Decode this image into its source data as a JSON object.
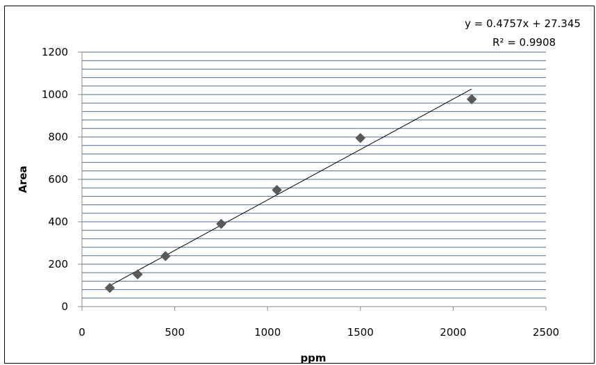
{
  "chart_data": {
    "type": "scatter",
    "title": "",
    "xlabel": "ppm",
    "ylabel": "Area",
    "xlim": [
      0,
      2500
    ],
    "ylim": [
      0,
      1200
    ],
    "x_ticks": [
      0,
      500,
      1000,
      1500,
      2000,
      2500
    ],
    "y_ticks": [
      0,
      200,
      400,
      600,
      800,
      1000,
      1200
    ],
    "y_gridline_step": 40,
    "grid": true,
    "marker": "diamond",
    "colors": {
      "points": "#595959",
      "gridlines": "#4f6f96",
      "trendline": "#000000",
      "axis": "#888888"
    },
    "series": [
      {
        "x": [
          150,
          300,
          450,
          750,
          1050,
          1500,
          2100
        ],
        "y": [
          88,
          152,
          238,
          390,
          550,
          795,
          978
        ]
      }
    ],
    "trendline": {
      "type": "linear",
      "slope": 0.4757,
      "intercept": 27.345,
      "x_range": [
        150,
        2100
      ],
      "equation_label": "y = 0.4757x + 27.345",
      "r2_label": "R² = 0.9908"
    }
  }
}
